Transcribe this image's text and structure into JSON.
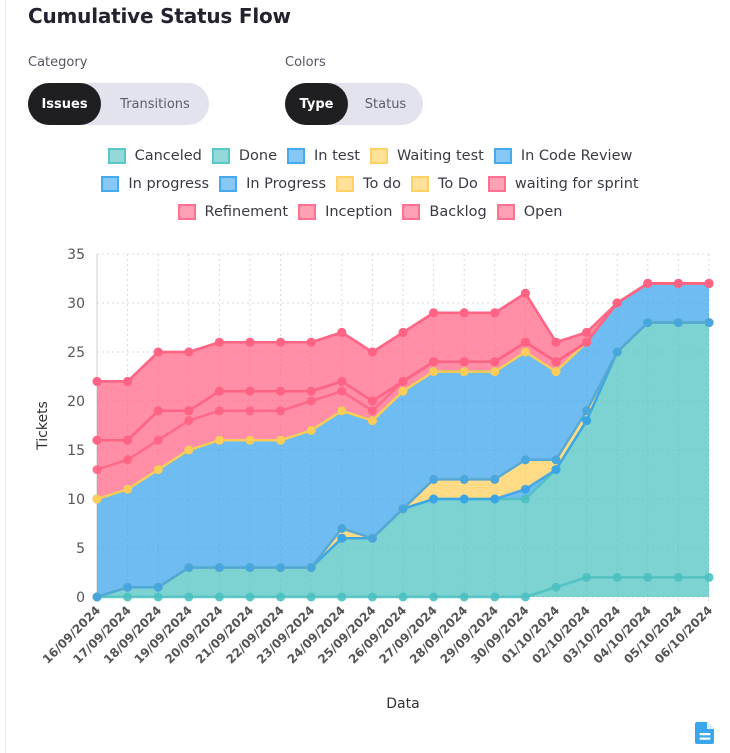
{
  "header": {
    "title": "Cumulative Status Flow"
  },
  "controls": {
    "category": {
      "label": "Category",
      "options": [
        "Issues",
        "Transitions"
      ],
      "selected": "Issues"
    },
    "colors": {
      "label": "Colors",
      "options": [
        "Type",
        "Status"
      ],
      "selected": "Type"
    }
  },
  "legend": {
    "rows": [
      [
        0,
        1,
        2,
        3,
        4
      ],
      [
        5,
        6,
        7,
        8,
        9
      ],
      [
        10,
        11,
        12,
        13
      ]
    ]
  },
  "footer": {
    "export_icon": "document-icon",
    "accent_color": "#3ba7ea"
  },
  "chart_data": {
    "type": "area",
    "stacked": true,
    "title": "",
    "xlabel": "Data",
    "ylabel": "Tickets",
    "ylim": [
      0,
      35
    ],
    "yticks": [
      0,
      5,
      10,
      15,
      20,
      25,
      30,
      35
    ],
    "grid": true,
    "legend_position": "top",
    "categories": [
      "16/09/2024",
      "17/09/2024",
      "18/09/2024",
      "19/09/2024",
      "20/09/2024",
      "21/09/2024",
      "22/09/2024",
      "23/09/2024",
      "24/09/2024",
      "25/09/2024",
      "26/09/2024",
      "27/09/2024",
      "28/09/2024",
      "29/09/2024",
      "30/09/2024",
      "01/10/2024",
      "02/10/2024",
      "03/10/2024",
      "04/10/2024",
      "05/10/2024",
      "06/10/2024"
    ],
    "series": [
      {
        "name": "Canceled",
        "color": "#4bc0c0",
        "values": [
          0,
          0,
          0,
          0,
          0,
          0,
          0,
          0,
          0,
          0,
          0,
          0,
          0,
          0,
          0,
          1,
          2,
          2,
          2,
          2,
          2
        ]
      },
      {
        "name": "Done",
        "color": "#4bc0c0",
        "values": [
          0,
          1,
          1,
          3,
          3,
          3,
          3,
          3,
          6,
          6,
          9,
          10,
          10,
          10,
          10,
          12,
          16,
          23,
          26,
          26,
          26
        ]
      },
      {
        "name": "In test",
        "color": "#36a2eb",
        "values": [
          0,
          0,
          0,
          0,
          0,
          0,
          0,
          0,
          0,
          0,
          0,
          0,
          0,
          0,
          1,
          0,
          0,
          0,
          0,
          0,
          0
        ]
      },
      {
        "name": "Waiting test",
        "color": "#ffcd56",
        "values": [
          0,
          0,
          0,
          0,
          0,
          0,
          0,
          0,
          1,
          0,
          0,
          2,
          2,
          2,
          3,
          1,
          1,
          0,
          0,
          0,
          0
        ]
      },
      {
        "name": "In Code Review",
        "color": "#36a2eb",
        "values": [
          0,
          0,
          0,
          0,
          0,
          0,
          0,
          0,
          0,
          0,
          0,
          0,
          0,
          0,
          0,
          0,
          0,
          0,
          0,
          0,
          0
        ]
      },
      {
        "name": "In progress",
        "color": "#36a2eb",
        "values": [
          10,
          10,
          12,
          12,
          13,
          13,
          13,
          14,
          12,
          12,
          12,
          11,
          11,
          11,
          11,
          9,
          7,
          5,
          4,
          4,
          4
        ]
      },
      {
        "name": "In Progress",
        "color": "#36a2eb",
        "values": [
          0,
          0,
          0,
          0,
          0,
          0,
          0,
          0,
          0,
          0,
          0,
          0,
          0,
          0,
          0,
          0,
          0,
          0,
          0,
          0,
          0
        ]
      },
      {
        "name": "To do",
        "color": "#ffcd56",
        "values": [
          0,
          0,
          0,
          0,
          0,
          0,
          0,
          0,
          0,
          0,
          0,
          0,
          0,
          0,
          0,
          0,
          0,
          0,
          0,
          0,
          0
        ]
      },
      {
        "name": "To Do",
        "color": "#ffcd56",
        "values": [
          0,
          0,
          0,
          0,
          0,
          0,
          0,
          0,
          0,
          0,
          0,
          0,
          0,
          0,
          0,
          0,
          0,
          0,
          0,
          0,
          0
        ]
      },
      {
        "name": "waiting for sprint",
        "color": "#ff6384",
        "values": [
          3,
          3,
          3,
          3,
          3,
          3,
          3,
          3,
          2,
          1,
          1,
          1,
          1,
          1,
          1,
          1,
          0,
          0,
          0,
          0,
          0
        ]
      },
      {
        "name": "Refinement",
        "color": "#ff6384",
        "values": [
          3,
          2,
          3,
          1,
          2,
          2,
          2,
          1,
          1,
          1,
          0,
          0,
          0,
          0,
          0,
          0,
          0,
          0,
          0,
          0,
          0
        ]
      },
      {
        "name": "Inception",
        "color": "#ff6384",
        "values": [
          0,
          0,
          0,
          0,
          0,
          0,
          0,
          0,
          0,
          0,
          0,
          0,
          0,
          0,
          0,
          0,
          0,
          0,
          0,
          0,
          0
        ]
      },
      {
        "name": "Backlog",
        "color": "#ff6384",
        "values": [
          6,
          6,
          6,
          6,
          5,
          5,
          5,
          5,
          5,
          5,
          5,
          5,
          5,
          5,
          5,
          2,
          1,
          0,
          0,
          0,
          0
        ]
      },
      {
        "name": "Open",
        "color": "#ff6384",
        "values": [
          0,
          0,
          0,
          0,
          0,
          0,
          0,
          0,
          0,
          0,
          0,
          0,
          0,
          0,
          0,
          0,
          0,
          0,
          0,
          0,
          0
        ]
      }
    ]
  }
}
